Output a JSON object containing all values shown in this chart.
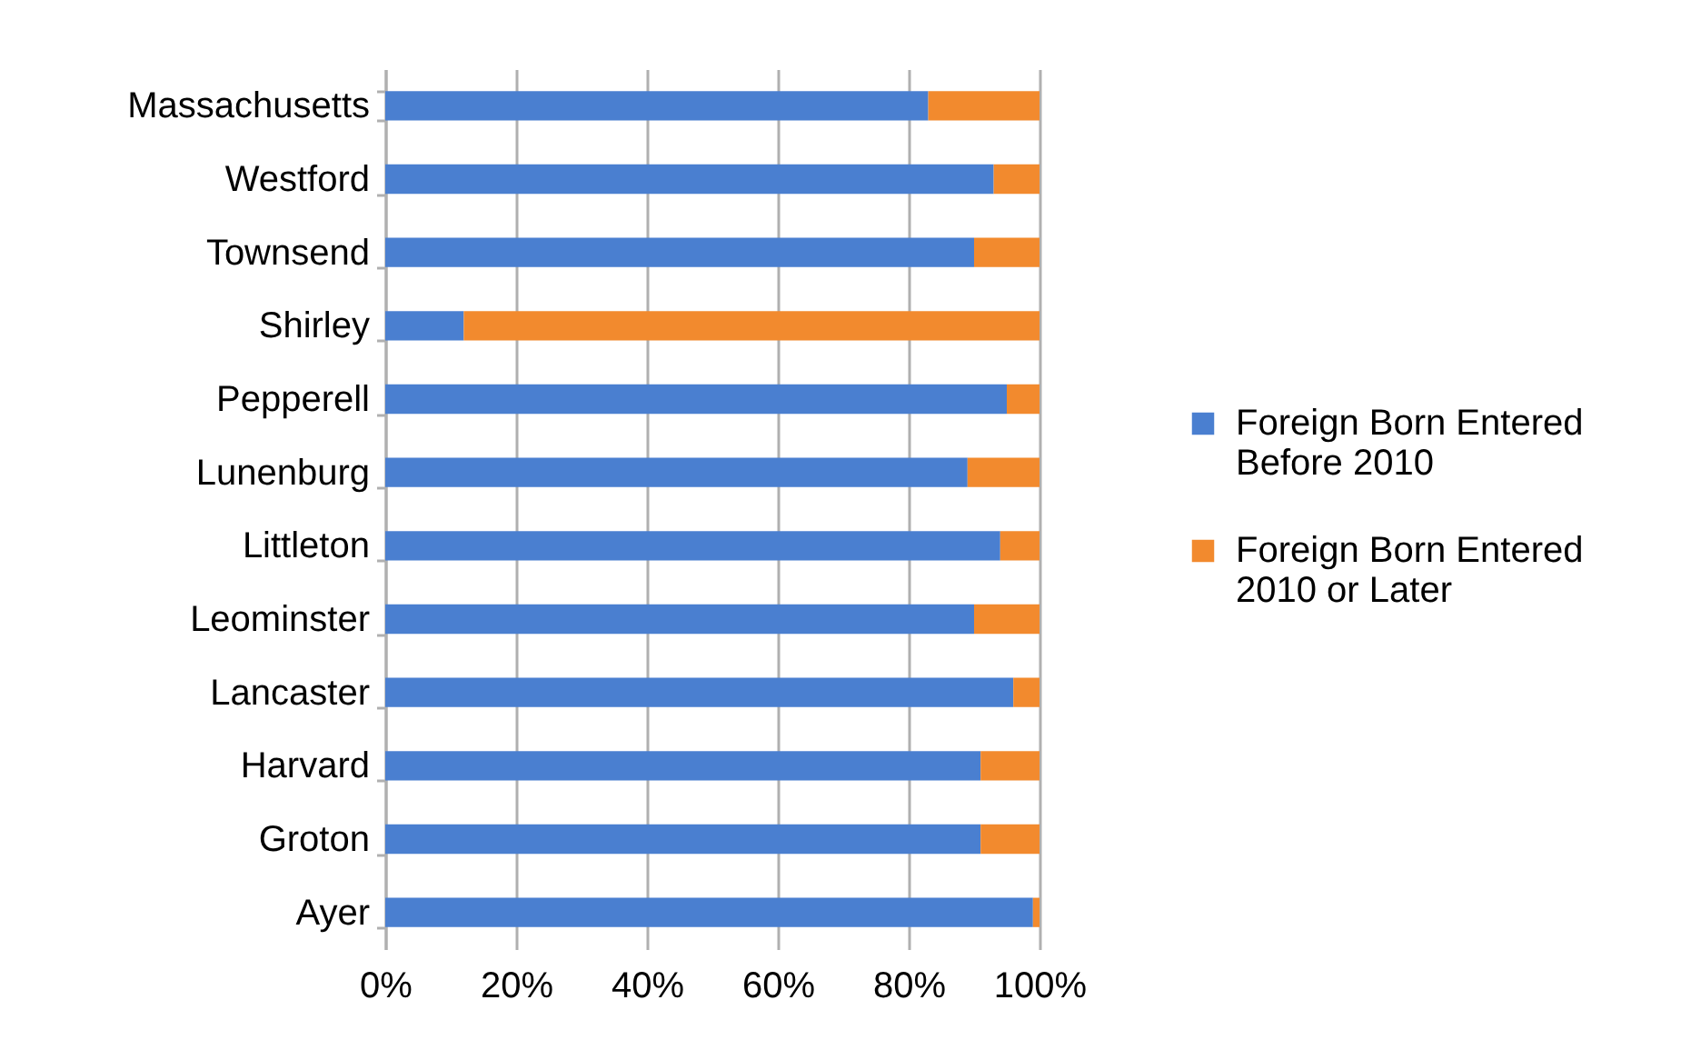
{
  "chart_data": {
    "type": "bar",
    "orientation": "horizontal",
    "stacked": true,
    "categories": [
      "Massachusetts",
      "Westford",
      "Townsend",
      "Shirley",
      "Pepperell",
      "Lunenburg",
      "Littleton",
      "Leominster",
      "Lancaster",
      "Harvard",
      "Groton",
      "Ayer"
    ],
    "series": [
      {
        "name": "Foreign Born Entered Before 2010",
        "color": "#4a7fd0",
        "values": [
          83,
          93,
          90,
          12,
          95,
          89,
          94,
          90,
          96,
          91,
          91,
          99
        ]
      },
      {
        "name": "Foreign Born Entered 2010 or Later",
        "color": "#f28a2e",
        "values": [
          17,
          7,
          10,
          88,
          5,
          11,
          6,
          10,
          4,
          9,
          9,
          1
        ]
      }
    ],
    "xlim": [
      0,
      100
    ],
    "xticks": [
      {
        "value": 0,
        "label": "0%"
      },
      {
        "value": 20,
        "label": "20%"
      },
      {
        "value": 40,
        "label": "40%"
      },
      {
        "value": 60,
        "label": "60%"
      },
      {
        "value": 80,
        "label": "80%"
      },
      {
        "value": 100,
        "label": "100%"
      }
    ],
    "grid": "x",
    "legend": "right"
  }
}
